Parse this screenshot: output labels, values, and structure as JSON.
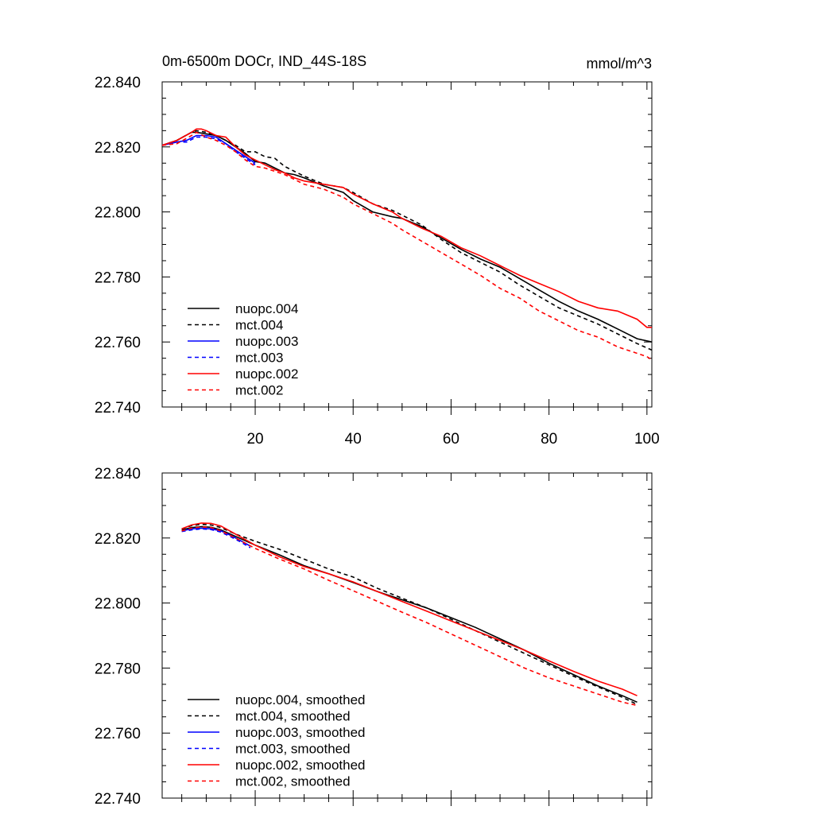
{
  "title_left": "0m-6500m DOCr, IND_44S-18S",
  "title_right": "mmol/m^3",
  "colors": {
    "black": "#000000",
    "blue": "#0000ff",
    "red": "#ff0000"
  },
  "chart_data": [
    {
      "type": "line",
      "xlim": [
        1,
        101
      ],
      "ylim": [
        22.74,
        22.84
      ],
      "x_ticks": [
        20,
        40,
        60,
        80,
        100
      ],
      "y_ticks": [
        22.74,
        22.76,
        22.78,
        22.8,
        22.82,
        22.84
      ],
      "y_tick_labels": [
        "22.740",
        "22.760",
        "22.780",
        "22.800",
        "22.820",
        "22.840"
      ],
      "x_tick_labels": [
        "20",
        "40",
        "60",
        "80",
        "100"
      ],
      "show_x_tick_labels": true,
      "legend_position": "bottom-left",
      "series": [
        {
          "name": "nuopc.004",
          "color": "#000000",
          "dash": false,
          "x": [
            1,
            4,
            7,
            8,
            10,
            12,
            14,
            16,
            18,
            20,
            22,
            24,
            26,
            28,
            30,
            34,
            38,
            40,
            44,
            48,
            50,
            54,
            58,
            62,
            66,
            70,
            74,
            78,
            82,
            86,
            90,
            94,
            98,
            101
          ],
          "y": [
            22.8205,
            22.822,
            22.8245,
            22.8245,
            22.824,
            22.8235,
            22.822,
            22.82,
            22.818,
            22.8155,
            22.815,
            22.8135,
            22.812,
            22.8115,
            22.8105,
            22.808,
            22.806,
            22.8035,
            22.8,
            22.7985,
            22.798,
            22.7955,
            22.792,
            22.7885,
            22.7855,
            22.783,
            22.7795,
            22.776,
            22.7725,
            22.7695,
            22.767,
            22.764,
            22.761,
            22.76
          ]
        },
        {
          "name": "mct.004",
          "color": "#000000",
          "dash": true,
          "x": [
            1,
            4,
            7,
            8,
            10,
            12,
            14,
            16,
            18,
            20,
            22,
            24,
            26,
            28,
            30,
            34,
            38,
            40,
            44,
            48,
            50,
            54,
            58,
            62,
            66,
            70,
            74,
            78,
            82,
            86,
            90,
            94,
            98,
            101
          ],
          "y": [
            22.8205,
            22.822,
            22.8245,
            22.825,
            22.8245,
            22.8235,
            22.822,
            22.8205,
            22.8185,
            22.8185,
            22.817,
            22.8165,
            22.814,
            22.8125,
            22.811,
            22.8085,
            22.8075,
            22.806,
            22.8025,
            22.8005,
            22.799,
            22.796,
            22.7915,
            22.7875,
            22.7845,
            22.7815,
            22.7775,
            22.774,
            22.7705,
            22.768,
            22.7655,
            22.7625,
            22.7595,
            22.7575
          ]
        },
        {
          "name": "nuopc.003",
          "color": "#0000ff",
          "dash": false,
          "x": [
            1,
            4,
            6,
            8,
            10,
            12,
            14,
            16,
            18,
            20
          ],
          "y": [
            22.8205,
            22.8215,
            22.822,
            22.8235,
            22.8235,
            22.823,
            22.821,
            22.819,
            22.817,
            22.815
          ]
        },
        {
          "name": "mct.003",
          "color": "#0000ff",
          "dash": true,
          "x": [
            1,
            4,
            6,
            8,
            10,
            12,
            14,
            16,
            18,
            20
          ],
          "y": [
            22.8205,
            22.8215,
            22.8215,
            22.823,
            22.823,
            22.8225,
            22.821,
            22.8185,
            22.8165,
            22.8145
          ]
        },
        {
          "name": "nuopc.002",
          "color": "#ff0000",
          "dash": false,
          "x": [
            1,
            4,
            7,
            8,
            9,
            10,
            12,
            14,
            16,
            18,
            20,
            22,
            24,
            26,
            28,
            30,
            34,
            38,
            40,
            44,
            48,
            50,
            54,
            58,
            62,
            66,
            70,
            74,
            78,
            82,
            86,
            90,
            94,
            98,
            100,
            101
          ],
          "y": [
            22.8205,
            22.822,
            22.8245,
            22.8255,
            22.8255,
            22.825,
            22.8235,
            22.823,
            22.82,
            22.8175,
            22.816,
            22.8145,
            22.813,
            22.812,
            22.8105,
            22.8095,
            22.8085,
            22.8075,
            22.8055,
            22.8025,
            22.8,
            22.798,
            22.795,
            22.7925,
            22.789,
            22.7865,
            22.7835,
            22.7805,
            22.778,
            22.7755,
            22.7725,
            22.7705,
            22.7695,
            22.767,
            22.7645,
            22.7645
          ]
        },
        {
          "name": "mct.002",
          "color": "#ff0000",
          "dash": true,
          "x": [
            1,
            4,
            7,
            8,
            10,
            12,
            14,
            16,
            18,
            20,
            22,
            24,
            26,
            28,
            30,
            34,
            38,
            40,
            44,
            48,
            50,
            54,
            58,
            62,
            66,
            70,
            74,
            78,
            82,
            86,
            90,
            94,
            98,
            100,
            101
          ],
          "y": [
            22.8205,
            22.821,
            22.8235,
            22.8245,
            22.823,
            22.822,
            22.8205,
            22.8185,
            22.816,
            22.814,
            22.8135,
            22.8125,
            22.8115,
            22.81,
            22.8085,
            22.807,
            22.8045,
            22.8025,
            22.7995,
            22.7965,
            22.7945,
            22.791,
            22.7875,
            22.784,
            22.7805,
            22.7765,
            22.7735,
            22.7695,
            22.7665,
            22.7635,
            22.7615,
            22.7585,
            22.7565,
            22.7555,
            22.7545
          ]
        }
      ]
    },
    {
      "type": "line",
      "xlim": [
        1,
        101
      ],
      "ylim": [
        22.74,
        22.84
      ],
      "x_ticks": [
        20,
        40,
        60,
        80,
        100
      ],
      "y_ticks": [
        22.74,
        22.76,
        22.78,
        22.8,
        22.82,
        22.84
      ],
      "y_tick_labels": [
        "22.740",
        "22.760",
        "22.780",
        "22.800",
        "22.820",
        "22.840"
      ],
      "x_tick_labels": [],
      "show_x_tick_labels": false,
      "legend_position": "bottom-left",
      "series": [
        {
          "name": "nuopc.004, smoothed",
          "color": "#000000",
          "dash": false,
          "x": [
            5,
            7,
            9,
            11,
            13,
            16,
            20,
            25,
            30,
            35,
            40,
            45,
            50,
            55,
            60,
            65,
            70,
            75,
            80,
            85,
            90,
            95,
            98
          ],
          "y": [
            22.8225,
            22.8232,
            22.8235,
            22.8233,
            22.8225,
            22.8205,
            22.8178,
            22.8148,
            22.8115,
            22.809,
            22.8063,
            22.8035,
            22.801,
            22.7985,
            22.7955,
            22.7925,
            22.789,
            22.7855,
            22.7815,
            22.778,
            22.7745,
            22.7715,
            22.7695
          ]
        },
        {
          "name": "mct.004, smoothed",
          "color": "#000000",
          "dash": true,
          "x": [
            5,
            7,
            9,
            11,
            13,
            16,
            20,
            25,
            30,
            35,
            40,
            45,
            50,
            55,
            60,
            65,
            70,
            75,
            80,
            85,
            90,
            95,
            98
          ],
          "y": [
            22.8228,
            22.8238,
            22.8242,
            22.824,
            22.8232,
            22.8212,
            22.819,
            22.8165,
            22.8135,
            22.8105,
            22.808,
            22.8045,
            22.8015,
            22.7985,
            22.795,
            22.7915,
            22.788,
            22.7845,
            22.781,
            22.7775,
            22.7742,
            22.771,
            22.7688
          ]
        },
        {
          "name": "nuopc.003, smoothed",
          "color": "#0000ff",
          "dash": false,
          "x": [
            5,
            7,
            9,
            11,
            13,
            15,
            17,
            19
          ],
          "y": [
            22.8222,
            22.8228,
            22.823,
            22.8228,
            22.8222,
            22.8208,
            22.8192,
            22.8175
          ]
        },
        {
          "name": "mct.003, smoothed",
          "color": "#0000ff",
          "dash": true,
          "x": [
            5,
            7,
            9,
            11,
            13,
            15,
            17,
            19
          ],
          "y": [
            22.822,
            22.8225,
            22.8228,
            22.8226,
            22.8218,
            22.8204,
            22.8188,
            22.817
          ]
        },
        {
          "name": "nuopc.002, smoothed",
          "color": "#ff0000",
          "dash": false,
          "x": [
            5,
            7,
            9,
            11,
            13,
            16,
            20,
            25,
            30,
            35,
            40,
            45,
            50,
            55,
            60,
            65,
            70,
            75,
            80,
            85,
            90,
            95,
            98
          ],
          "y": [
            22.8228,
            22.824,
            22.8246,
            22.8245,
            22.8237,
            22.8212,
            22.8178,
            22.8142,
            22.8112,
            22.809,
            22.8065,
            22.8035,
            22.8005,
            22.7975,
            22.7945,
            22.7915,
            22.7885,
            22.7855,
            22.7822,
            22.779,
            22.776,
            22.7735,
            22.7715
          ]
        },
        {
          "name": "mct.002, smoothed",
          "color": "#ff0000",
          "dash": true,
          "x": [
            5,
            7,
            9,
            11,
            13,
            16,
            20,
            25,
            30,
            35,
            40,
            45,
            50,
            55,
            60,
            65,
            70,
            75,
            80,
            85,
            90,
            95,
            98
          ],
          "y": [
            22.8222,
            22.823,
            22.8234,
            22.8232,
            22.8222,
            22.82,
            22.8168,
            22.8135,
            22.8105,
            22.807,
            22.8038,
            22.8005,
            22.7972,
            22.794,
            22.7905,
            22.787,
            22.7835,
            22.78,
            22.777,
            22.7745,
            22.772,
            22.7695,
            22.7685
          ]
        }
      ]
    }
  ]
}
